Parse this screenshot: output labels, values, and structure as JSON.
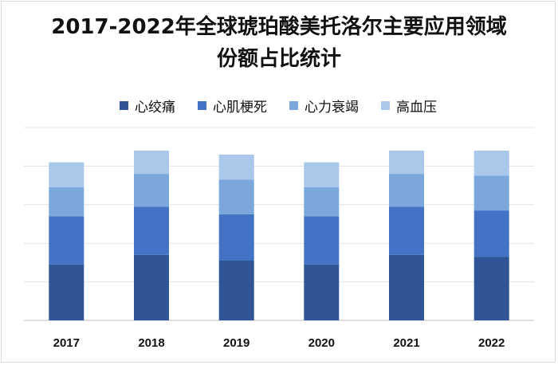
{
  "chart_data": {
    "type": "bar",
    "stacked": true,
    "title": "2017-2022年全球琥珀酸美托洛尔主要应用领域\n份额占比统计",
    "categories": [
      "2017",
      "2018",
      "2019",
      "2020",
      "2021",
      "2022"
    ],
    "series": [
      {
        "name": "心绞痛",
        "color": "#2f5597",
        "values": [
          14.5,
          17.0,
          15.5,
          14.5,
          17.0,
          16.5
        ]
      },
      {
        "name": "心肌梗死",
        "color": "#4472c4",
        "values": [
          12.5,
          12.5,
          12.0,
          12.5,
          12.5,
          12.0
        ]
      },
      {
        "name": "心力衰竭",
        "color": "#7ba7dc",
        "values": [
          7.5,
          8.5,
          9.0,
          7.5,
          8.5,
          9.0
        ]
      },
      {
        "name": "高血压",
        "color": "#a9c8ea",
        "values": [
          6.5,
          6.0,
          6.5,
          6.5,
          6.0,
          6.5
        ]
      }
    ],
    "ylim": [
      0,
      50
    ],
    "grid": true,
    "legend_position": "top",
    "xlabel": "",
    "ylabel": ""
  }
}
